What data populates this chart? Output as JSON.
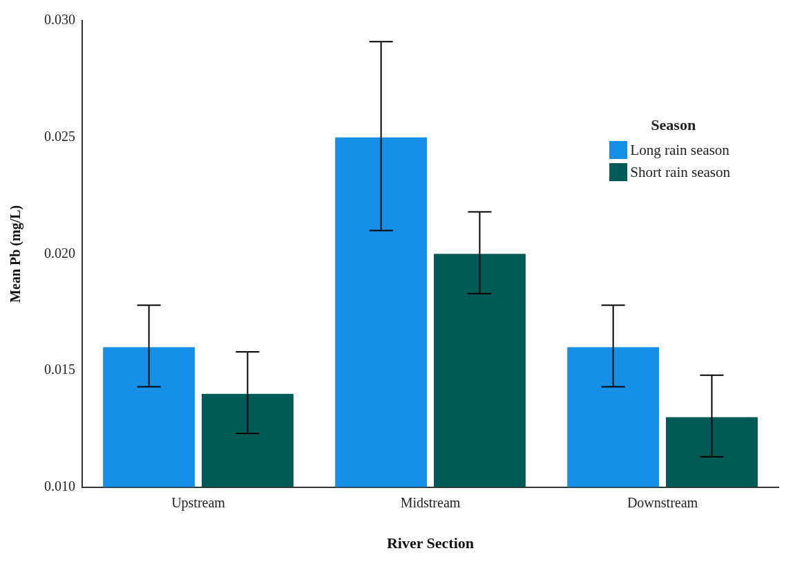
{
  "chart_data": {
    "type": "bar",
    "xlabel": "River Section",
    "ylabel": "Mean Pb (mg/L)",
    "legend_title": "Season",
    "categories": [
      "Upstream",
      "Midstream",
      "Downstream"
    ],
    "series": [
      {
        "name": "Long rain season",
        "color": "#1590e6",
        "values": [
          0.016,
          0.025,
          0.016
        ],
        "errors": [
          [
            0.0143,
            0.0178
          ],
          [
            0.021,
            0.0291
          ],
          [
            0.0143,
            0.0178
          ]
        ]
      },
      {
        "name": "Short rain season",
        "color": "#005a55",
        "values": [
          0.014,
          0.02,
          0.013
        ],
        "errors": [
          [
            0.0123,
            0.0158
          ],
          [
            0.0183,
            0.0218
          ],
          [
            0.0113,
            0.0148
          ]
        ]
      }
    ],
    "ylim": [
      0.01,
      0.03
    ],
    "yticks": [
      {
        "value": 0.01,
        "label": "0.010"
      },
      {
        "value": 0.015,
        "label": "0.015"
      },
      {
        "value": 0.02,
        "label": "0.020"
      },
      {
        "value": 0.025,
        "label": "0.025"
      },
      {
        "value": 0.03,
        "label": "0.030"
      }
    ],
    "grid": false,
    "legend": "top right"
  }
}
